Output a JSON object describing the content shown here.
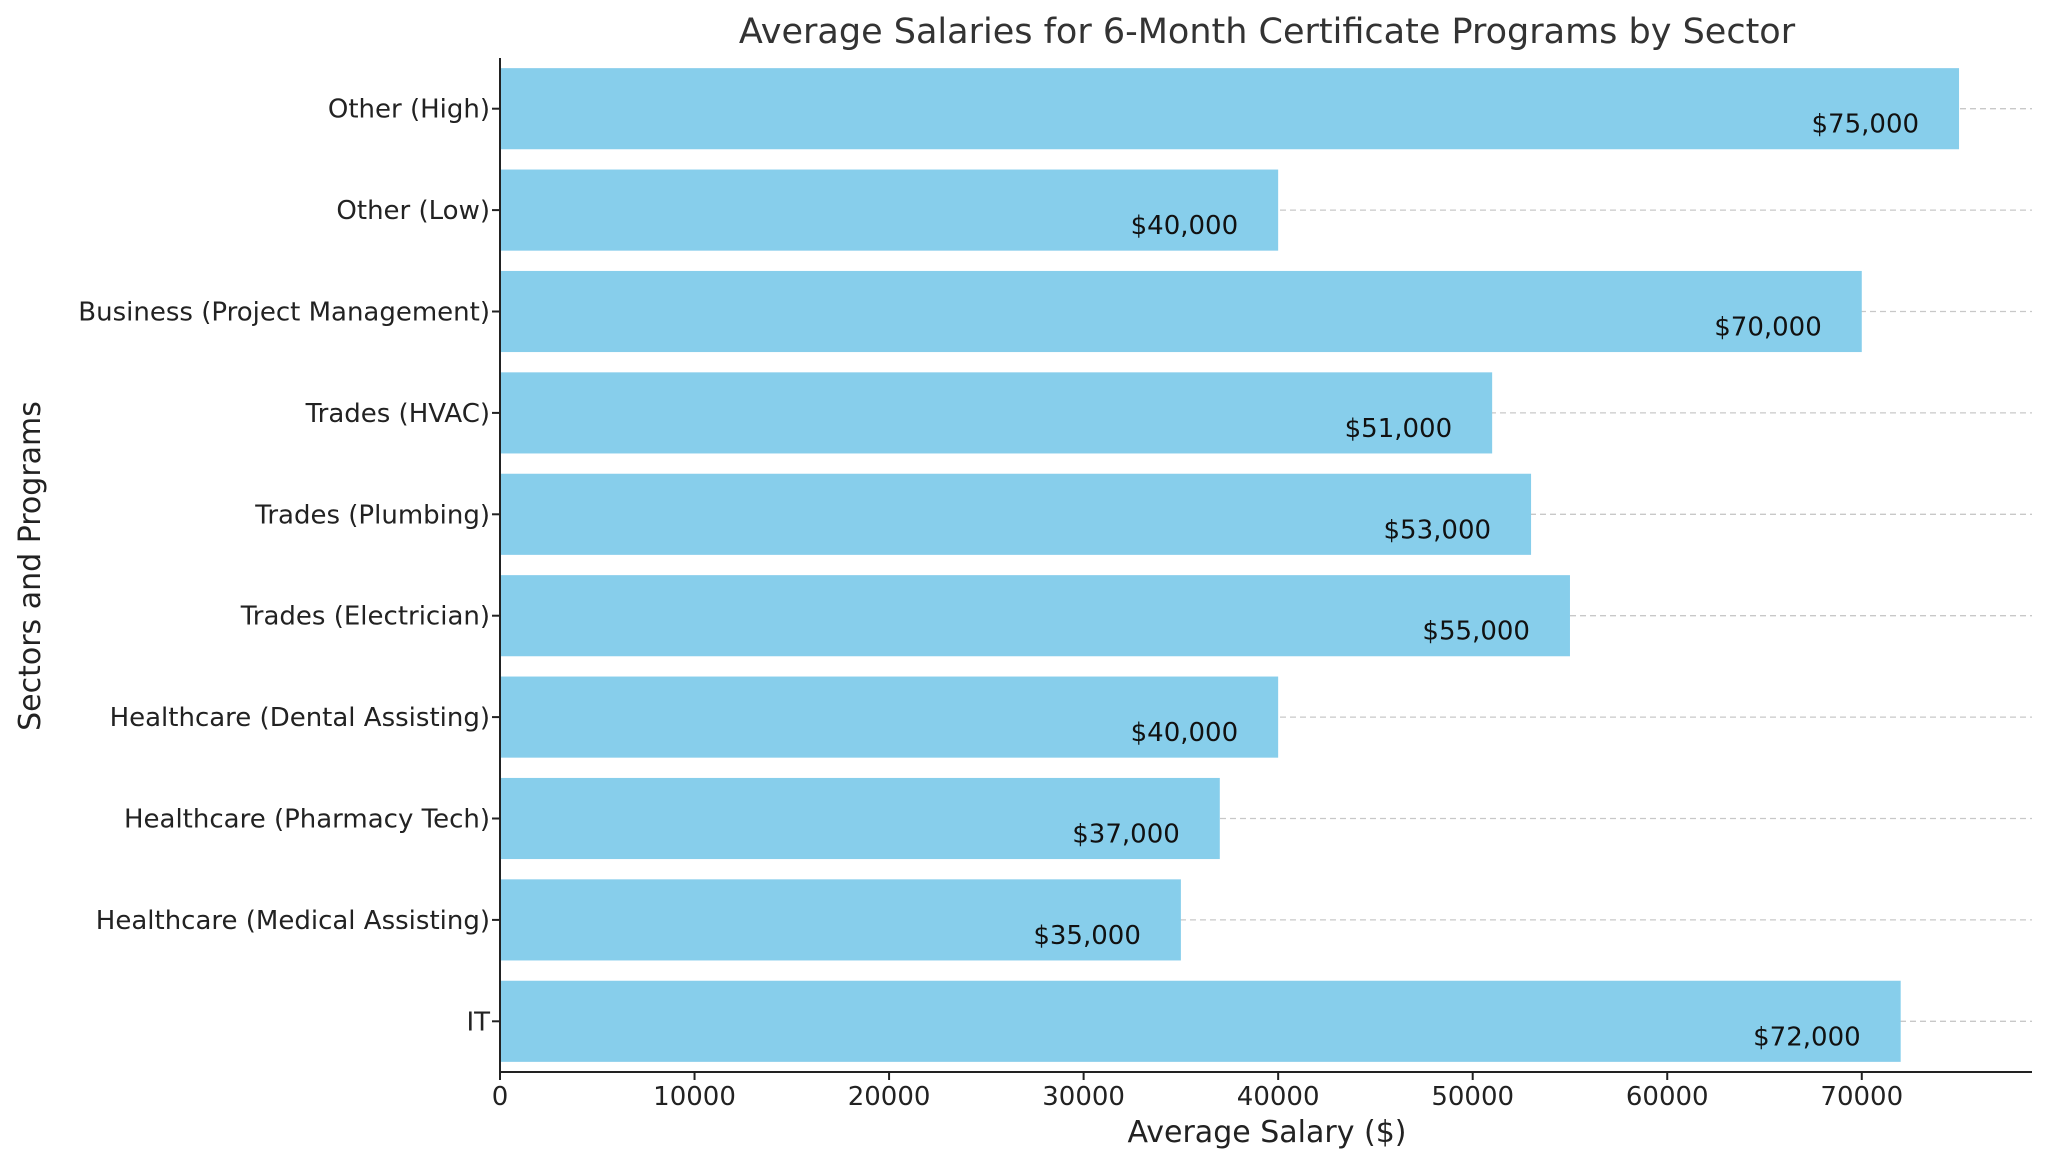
{
  "chart_data": {
    "type": "bar",
    "orientation": "horizontal",
    "title": "Average Salaries for 6-Month Certificate Programs by Sector",
    "xlabel": "Average Salary ($)",
    "ylabel": "Sectors and Programs",
    "categories": [
      "IT",
      "Healthcare (Medical Assisting)",
      "Healthcare (Pharmacy Tech)",
      "Healthcare (Dental Assisting)",
      "Trades (Electrician)",
      "Trades (Plumbing)",
      "Trades (HVAC)",
      "Business (Project Management)",
      "Other (Low)",
      "Other (High)"
    ],
    "values": [
      72000,
      35000,
      37000,
      40000,
      55000,
      53000,
      51000,
      70000,
      40000,
      75000
    ],
    "data_labels": [
      "$72,000",
      "$35,000",
      "$37,000",
      "$40,000",
      "$55,000",
      "$53,000",
      "$51,000",
      "$70,000",
      "$40,000",
      "$75,000"
    ],
    "xlim": [
      0,
      78750
    ],
    "xticks": [
      0,
      10000,
      20000,
      30000,
      40000,
      50000,
      60000,
      70000
    ],
    "xtick_labels": [
      "0",
      "10000",
      "20000",
      "30000",
      "40000",
      "50000",
      "60000",
      "70000"
    ],
    "grid": "y-dashed",
    "bar_color": "#87CEEB"
  }
}
